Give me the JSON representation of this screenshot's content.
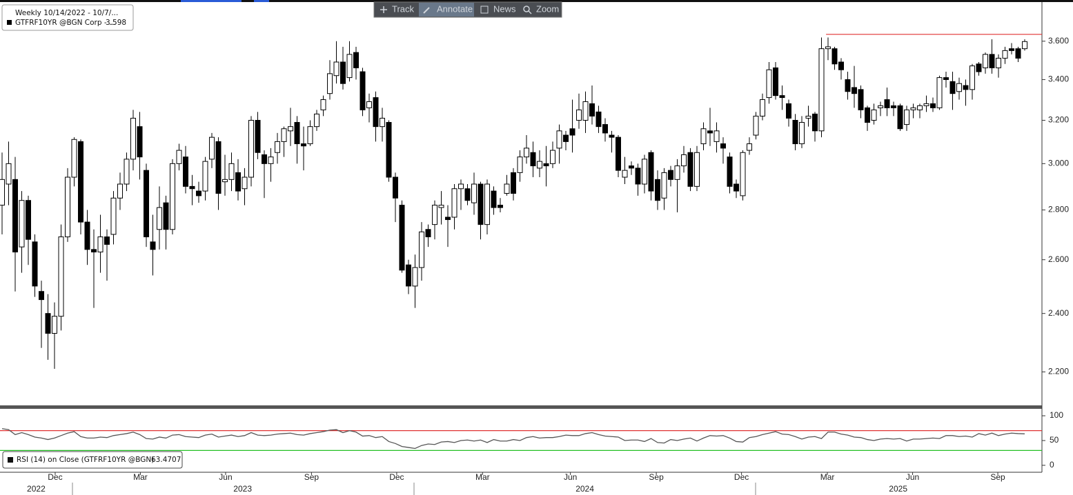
{
  "toolbar": [
    "Track",
    "Annotate",
    "News",
    "Zoom"
  ],
  "chart_data": [
    {
      "type": "candlestick",
      "title": "Weekly 10/14/2022 - 10/7/...",
      "series_name": "GTFRF10YR @BGN Corp - ...",
      "up_color": "#ffffff",
      "down_color": "#000000",
      "outline_color": "#000000",
      "log_scale": true,
      "open": [
        2.82,
        2.91,
        2.93,
        2.65,
        2.84,
        2.67,
        2.48,
        2.4,
        2.33,
        2.39,
        2.69,
        2.94,
        3.1,
        2.75,
        2.64,
        2.63,
        2.69,
        2.7,
        2.85,
        2.91,
        3.02,
        3.17,
        2.97,
        2.67,
        2.72,
        2.83,
        2.72,
        3.0,
        3.03,
        2.9,
        2.88,
        2.88,
        3.02,
        3.1,
        2.92,
        2.93,
        2.96,
        2.89,
        2.94,
        3.2,
        3.04,
        3.0,
        3.05,
        3.1,
        3.15,
        3.19,
        3.09,
        3.09,
        3.17,
        3.25,
        3.33,
        3.42,
        3.49,
        3.41,
        3.54,
        3.44,
        3.26,
        3.31,
        3.17,
        3.19,
        2.94,
        2.82,
        2.58,
        2.5,
        2.57,
        2.72,
        2.74,
        2.81,
        2.77,
        2.77,
        2.89,
        2.89,
        2.83,
        2.91,
        2.74,
        2.88,
        2.82,
        2.87,
        2.96,
        2.96,
        3.03,
        3.05,
        2.98,
        3.0,
        3.0,
        3.07,
        3.13,
        3.16,
        3.2,
        3.2,
        3.28,
        3.24,
        3.18,
        3.13,
        3.12,
        2.94,
        2.99,
        2.98,
        2.91,
        3.05,
        2.93,
        2.85,
        2.97,
        2.93,
        2.99,
        3.05,
        2.9,
        3.09,
        3.15,
        3.1,
        3.09,
        3.03,
        2.91,
        2.86,
        3.06,
        3.13,
        3.22,
        3.31,
        3.46,
        3.32,
        3.28,
        3.2,
        3.09,
        3.21,
        3.23,
        3.15,
        3.56,
        3.56,
        3.49,
        3.4,
        3.36,
        3.35,
        3.26,
        3.2,
        3.26,
        3.3,
        3.27,
        3.27,
        3.18,
        3.25,
        3.25,
        3.27,
        3.28,
        3.26,
        3.41,
        3.39,
        3.34,
        3.37,
        3.35,
        3.48,
        3.46,
        3.53,
        3.46,
        3.51,
        3.56,
        3.56,
        3.56
      ],
      "high": [
        3.05,
        3.1,
        3.03,
        2.88,
        2.86,
        2.7,
        2.52,
        2.47,
        2.44,
        2.74,
        2.98,
        3.12,
        3.11,
        2.8,
        2.72,
        2.78,
        2.72,
        2.88,
        2.96,
        3.05,
        3.25,
        3.24,
        3.0,
        2.78,
        2.9,
        2.86,
        3.02,
        3.09,
        3.08,
        2.95,
        2.92,
        3.03,
        3.14,
        3.12,
        3.04,
        3.05,
        3.02,
        2.98,
        3.22,
        3.24,
        3.06,
        3.07,
        3.14,
        3.17,
        3.26,
        3.22,
        3.17,
        3.2,
        3.25,
        3.32,
        3.5,
        3.6,
        3.57,
        3.6,
        3.57,
        3.46,
        3.33,
        3.34,
        3.26,
        3.2,
        2.96,
        2.84,
        2.6,
        2.62,
        2.75,
        2.74,
        2.84,
        2.88,
        2.82,
        2.91,
        2.93,
        2.91,
        2.96,
        2.92,
        2.93,
        2.9,
        2.85,
        2.95,
        2.98,
        3.06,
        3.13,
        3.1,
        3.06,
        3.08,
        3.1,
        3.18,
        3.15,
        3.3,
        3.33,
        3.34,
        3.37,
        3.27,
        3.21,
        3.15,
        3.13,
        3.03,
        3.01,
        3.0,
        3.04,
        3.06,
        2.97,
        2.98,
        2.99,
        3.02,
        3.08,
        3.07,
        3.08,
        3.19,
        3.26,
        3.19,
        3.12,
        3.05,
        2.93,
        3.06,
        3.12,
        3.24,
        3.33,
        3.49,
        3.49,
        3.37,
        3.3,
        3.23,
        3.22,
        3.27,
        3.24,
        3.62,
        3.62,
        3.57,
        3.51,
        3.44,
        3.47,
        3.37,
        3.27,
        3.28,
        3.29,
        3.36,
        3.29,
        3.28,
        3.27,
        3.28,
        3.28,
        3.32,
        3.31,
        3.42,
        3.44,
        3.44,
        3.41,
        3.4,
        3.48,
        3.49,
        3.54,
        3.61,
        3.53,
        3.57,
        3.59,
        3.57,
        3.61
      ],
      "low": [
        2.7,
        2.82,
        2.48,
        2.55,
        2.58,
        2.46,
        2.28,
        2.24,
        2.21,
        2.34,
        2.67,
        2.9,
        2.7,
        2.58,
        2.42,
        2.55,
        2.52,
        2.66,
        2.8,
        2.88,
        2.97,
        2.93,
        2.65,
        2.54,
        2.64,
        2.64,
        2.7,
        2.97,
        2.87,
        2.82,
        2.83,
        2.84,
        2.98,
        2.8,
        2.86,
        2.88,
        2.84,
        2.82,
        2.9,
        3.02,
        2.85,
        2.92,
        3.0,
        3.03,
        3.08,
        3.0,
        2.97,
        3.08,
        3.15,
        3.22,
        3.3,
        3.38,
        3.35,
        3.39,
        3.4,
        3.22,
        3.19,
        3.1,
        3.1,
        2.92,
        2.75,
        2.55,
        2.47,
        2.42,
        2.52,
        2.65,
        2.68,
        2.74,
        2.65,
        2.72,
        2.8,
        2.82,
        2.78,
        2.68,
        2.7,
        2.78,
        2.79,
        2.86,
        2.84,
        2.92,
        3.0,
        2.94,
        2.94,
        2.9,
        2.98,
        3.0,
        3.06,
        3.05,
        3.16,
        3.14,
        3.18,
        3.14,
        3.1,
        3.05,
        2.94,
        2.91,
        2.95,
        2.86,
        2.87,
        2.84,
        2.8,
        2.8,
        2.9,
        2.79,
        2.96,
        2.88,
        2.88,
        3.06,
        3.08,
        3.05,
        3.0,
        2.87,
        2.85,
        2.84,
        3.04,
        3.11,
        3.2,
        3.28,
        3.3,
        3.25,
        3.17,
        3.06,
        3.07,
        3.17,
        3.1,
        3.12,
        3.5,
        3.45,
        3.4,
        3.3,
        3.26,
        3.21,
        3.15,
        3.18,
        3.22,
        3.22,
        3.22,
        3.15,
        3.15,
        3.21,
        3.21,
        3.24,
        3.24,
        3.25,
        3.36,
        3.25,
        3.3,
        3.27,
        3.3,
        3.42,
        3.43,
        3.43,
        3.41,
        3.48,
        3.53,
        3.49,
        3.55
      ],
      "close": [
        2.93,
        3.0,
        2.63,
        2.84,
        2.68,
        2.5,
        2.45,
        2.33,
        2.39,
        2.69,
        2.94,
        3.11,
        2.75,
        2.64,
        2.63,
        2.69,
        2.66,
        2.85,
        2.91,
        3.02,
        3.21,
        3.03,
        2.69,
        2.64,
        2.81,
        2.72,
        3.0,
        3.06,
        2.9,
        2.89,
        2.86,
        3.01,
        3.12,
        2.87,
        2.93,
        3.0,
        2.88,
        2.94,
        3.2,
        3.05,
        3.0,
        3.03,
        3.1,
        3.16,
        3.17,
        3.09,
        3.08,
        3.17,
        3.23,
        3.3,
        3.43,
        3.49,
        3.38,
        3.53,
        3.46,
        3.25,
        3.29,
        3.17,
        3.21,
        2.94,
        2.85,
        2.56,
        2.5,
        2.57,
        2.71,
        2.69,
        2.82,
        2.82,
        2.76,
        2.89,
        2.91,
        2.84,
        2.91,
        2.74,
        2.91,
        2.81,
        2.81,
        2.91,
        2.87,
        3.03,
        3.07,
        2.99,
        3.01,
        2.99,
        3.06,
        3.15,
        3.1,
        3.13,
        3.25,
        3.29,
        3.22,
        3.17,
        3.14,
        3.12,
        2.97,
        2.97,
        2.98,
        2.91,
        3.02,
        2.88,
        2.84,
        2.96,
        2.93,
        2.99,
        3.04,
        2.9,
        3.05,
        3.16,
        3.14,
        3.15,
        3.07,
        2.9,
        2.88,
        3.05,
        3.09,
        3.22,
        3.3,
        3.45,
        3.32,
        3.31,
        3.21,
        3.09,
        3.19,
        3.22,
        3.15,
        3.56,
        3.57,
        3.48,
        3.45,
        3.34,
        3.33,
        3.25,
        3.19,
        3.25,
        3.27,
        3.26,
        3.26,
        3.16,
        3.25,
        3.26,
        3.27,
        3.28,
        3.26,
        3.41,
        3.4,
        3.33,
        3.38,
        3.35,
        3.47,
        3.44,
        3.53,
        3.46,
        3.51,
        3.55,
        3.55,
        3.51,
        3.598
      ],
      "ylim": [
        2.093,
        3.816
      ],
      "yticks": [
        {
          "value": 2.2,
          "label": "2.200"
        },
        {
          "value": 2.4,
          "label": "2.400"
        },
        {
          "value": 2.6,
          "label": "2.600"
        },
        {
          "value": 2.8,
          "label": "2.800"
        },
        {
          "value": 3.0,
          "label": "3.000"
        },
        {
          "value": 3.2,
          "label": "3.200"
        },
        {
          "value": 3.4,
          "label": "3.400"
        },
        {
          "value": 3.6,
          "label": "3.600"
        }
      ],
      "xticks": [
        {
          "value": 8.1,
          "label": "Dec"
        },
        {
          "value": 21.1,
          "label": "Mar"
        },
        {
          "value": 34.1,
          "label": "Jun"
        },
        {
          "value": 47.2,
          "label": "Sep"
        },
        {
          "value": 60.2,
          "label": "Dec"
        },
        {
          "value": 73.3,
          "label": "Mar"
        },
        {
          "value": 86.7,
          "label": "Jun"
        },
        {
          "value": 99.8,
          "label": "Sep"
        },
        {
          "value": 112.8,
          "label": "Dec"
        },
        {
          "value": 125.9,
          "label": "Mar"
        },
        {
          "value": 138.9,
          "label": "Jun"
        },
        {
          "value": 151.9,
          "label": "Sep"
        }
      ],
      "years": [
        {
          "value": 5.2,
          "label": "2022"
        },
        {
          "value": 36.7,
          "label": "2023"
        },
        {
          "value": 88.9,
          "label": "2024"
        },
        {
          "value": 136.7,
          "label": "2025"
        }
      ],
      "hline": {
        "value": 3.637,
        "from": 125.7,
        "color": "#e03030"
      }
    },
    {
      "type": "line",
      "series": [
        {
          "name": "RSI (14) on Close (GTFRF10YR @BGN)",
          "color": "#555555",
          "values": [
            74,
            72,
            62,
            66,
            62,
            57,
            55,
            52,
            55,
            60,
            65,
            68,
            58,
            55,
            55,
            57,
            56,
            60,
            62,
            64,
            67,
            62,
            54,
            53,
            57,
            55,
            61,
            62,
            58,
            57,
            56,
            61,
            63,
            57,
            59,
            61,
            58,
            60,
            66,
            61,
            60,
            61,
            63,
            64,
            65,
            62,
            61,
            64,
            66,
            68,
            71,
            72,
            66,
            70,
            67,
            59,
            60,
            56,
            58,
            48,
            44,
            38,
            36,
            34,
            40,
            43,
            42,
            47,
            48,
            46,
            50,
            51,
            49,
            51,
            46,
            52,
            49,
            49,
            52,
            50,
            56,
            58,
            55,
            56,
            56,
            58,
            61,
            60,
            60,
            64,
            66,
            62,
            59,
            58,
            57,
            50,
            51,
            51,
            48,
            54,
            46,
            45,
            52,
            50,
            53,
            55,
            49,
            55,
            60,
            59,
            60,
            55,
            48,
            47,
            56,
            58,
            62,
            65,
            68,
            63,
            62,
            58,
            53,
            57,
            58,
            54,
            67,
            67,
            63,
            61,
            57,
            56,
            52,
            50,
            53,
            54,
            53,
            54,
            49,
            53,
            53,
            54,
            55,
            54,
            60,
            60,
            58,
            59,
            57,
            64,
            61,
            65,
            60,
            63,
            65,
            64,
            63.4707
          ]
        }
      ],
      "ylim": [
        -14,
        114
      ],
      "yticks": [
        0,
        50,
        100
      ],
      "ref_lines": [
        {
          "value": 70,
          "color": "#e03030"
        },
        {
          "value": 30,
          "color": "#22c022"
        }
      ]
    }
  ]
}
